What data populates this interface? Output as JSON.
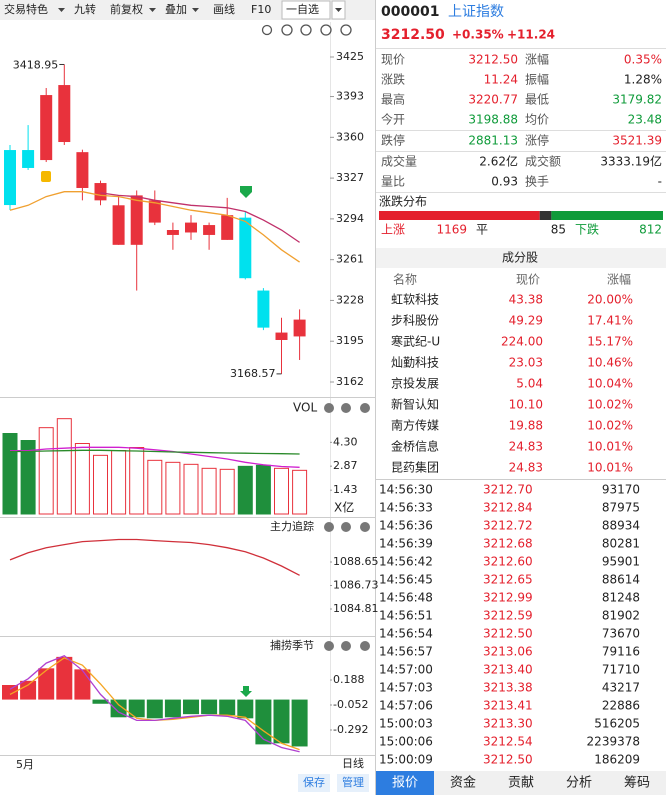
{
  "toolbar": {
    "items": [
      "交易特色",
      "九转",
      "前复权",
      "叠加",
      "画线",
      "F10",
      "一自选"
    ]
  },
  "kline": {
    "price_ticks": [
      3425,
      3393,
      3360,
      3327,
      3294,
      3261,
      3228,
      3195,
      3162
    ],
    "up_color": "#e8323c",
    "down_color": "#00e1ee",
    "candles": [
      {
        "open": 3349.7,
        "high": 3353.8,
        "low": 3301.2,
        "close": 3305.2
      },
      {
        "open": 3349.7,
        "high": 3369.9,
        "low": 3333.6,
        "close": 3335.2
      },
      {
        "open": 3341.6,
        "high": 3399.9,
        "low": 3340.0,
        "close": 3394.2
      },
      {
        "open": 3356.2,
        "high": 3418.95,
        "low": 3353.8,
        "close": 3402.3
      },
      {
        "open": 3319,
        "high": 3350,
        "low": 3309,
        "close": 3348
      },
      {
        "open": 3309,
        "high": 3325,
        "low": 3305,
        "close": 3323
      },
      {
        "open": 3273,
        "high": 3313,
        "low": 3273,
        "close": 3305
      },
      {
        "open": 3273,
        "high": 3317,
        "low": 3236,
        "close": 3313
      },
      {
        "open": 3291,
        "high": 3317,
        "low": 3289,
        "close": 3309
      },
      {
        "open": 3281,
        "high": 3291,
        "low": 3269,
        "close": 3285
      },
      {
        "open": 3283,
        "high": 3297,
        "low": 3277,
        "close": 3291
      },
      {
        "open": 3281,
        "high": 3291,
        "low": 3269,
        "close": 3289
      },
      {
        "open": 3277,
        "high": 3311,
        "low": 3277,
        "close": 3297
      },
      {
        "open": 3295,
        "high": 3300,
        "low": 3245,
        "close": 3246
      },
      {
        "open": 3236,
        "high": 3238,
        "low": 3204,
        "close": 3206
      },
      {
        "open": 3196,
        "high": 3214,
        "low": 3168.57,
        "close": 3202
      },
      {
        "open": 3198.88,
        "high": 3220.77,
        "low": 3179.82,
        "close": 3212.5
      }
    ],
    "ma": [
      {
        "color": "#f0a030",
        "values": [
          3301,
          3305,
          3312,
          3316,
          3316,
          3313,
          3312,
          3309,
          3307,
          3304,
          3301,
          3299,
          3297,
          3292,
          3281,
          3269,
          3259
        ]
      },
      {
        "color": "#c0306a",
        "values": [
          null,
          null,
          null,
          null,
          null,
          3315,
          3313,
          3312,
          3309,
          3307,
          3305,
          3304,
          3303,
          3300,
          3293,
          3285,
          3275
        ]
      }
    ],
    "date_label": "5月",
    "period": "日线"
  },
  "volume": {
    "title": "VOL",
    "unit": "X亿",
    "ylim": [
      0,
      6
    ],
    "ticks": [
      {
        "value": 4.3,
        "label": "4.30"
      },
      2.87,
      1.43
    ],
    "green": "#1f8f3c",
    "values": [
      4.83,
      4.41,
      5.18,
      5.72,
      4.23,
      3.52,
      3.81,
      3.99,
      3.22,
      3.1,
      2.98,
      2.74,
      2.68,
      2.86,
      2.92,
      2.74,
      2.62
    ],
    "ma": [
      {
        "color": "#d020d0",
        "values": [
          3.8,
          3.8,
          3.9,
          3.95,
          4.0,
          4.0,
          4.0,
          3.95,
          3.85,
          3.75,
          3.6,
          3.45,
          3.3,
          3.1,
          2.95,
          2.85,
          2.8
        ]
      },
      {
        "color": "#2a8a2a",
        "values": [
          3.75,
          3.75,
          3.78,
          3.8,
          3.82,
          3.82,
          3.8,
          3.78,
          3.75,
          3.72,
          3.7,
          3.68,
          3.66,
          3.65,
          3.63,
          3.62,
          3.6
        ]
      }
    ]
  },
  "mainforce": {
    "title": "主力追踪",
    "ticks": [
      1088.65,
      1086.73,
      1084.81
    ],
    "color": "#d0303a",
    "values": [
      1088.82,
      1089.4,
      1089.82,
      1090.07,
      1090.32,
      1090.4,
      1090.49,
      1090.49,
      1090.4,
      1090.32,
      1090.24,
      1090.07,
      1089.82,
      1089.48,
      1088.98,
      1088.32,
      1087.56
    ]
  },
  "season": {
    "title": "捕捞季节",
    "ticks": [
      0.188,
      -0.052,
      -0.292
    ],
    "values": [
      0.14,
      0.18,
      0.3,
      0.41,
      0.29,
      -0.04,
      -0.17,
      -0.17,
      -0.18,
      -0.17,
      -0.14,
      -0.14,
      -0.15,
      -0.18,
      -0.43,
      -0.42,
      -0.45
    ],
    "lines": [
      {
        "color": "#f5a623",
        "values": [
          0.05,
          0.14,
          0.28,
          0.4,
          0.33,
          0.15,
          -0.05,
          -0.18,
          -0.2,
          -0.19,
          -0.17,
          -0.15,
          -0.15,
          -0.17,
          -0.3,
          -0.42,
          -0.48
        ]
      },
      {
        "color": "#b040d0",
        "values": [
          0.1,
          0.2,
          0.35,
          0.42,
          0.28,
          0.05,
          -0.12,
          -0.2,
          -0.2,
          -0.18,
          -0.16,
          -0.15,
          -0.16,
          -0.2,
          -0.38,
          -0.46,
          -0.5
        ]
      }
    ]
  },
  "buttons": [
    "保存",
    "管理"
  ],
  "quote": {
    "code": "000001",
    "name": "上证指数",
    "price": "3212.50",
    "pct": "+0.35%",
    "change": "+11.24",
    "rows": [
      [
        {
          "label": "现价",
          "value": "3212.50",
          "color": "#e4202d"
        },
        {
          "label": "涨幅",
          "value": "0.35%",
          "color": "#e4202d"
        }
      ],
      [
        {
          "label": "涨跌",
          "value": "11.24",
          "color": "#e4202d"
        },
        {
          "label": "振幅",
          "value": "1.28%",
          "color": "#222222"
        }
      ],
      [
        {
          "label": "最高",
          "value": "3220.77",
          "color": "#e4202d"
        },
        {
          "label": "最低",
          "value": "3179.82",
          "color": "#0f9b3a"
        }
      ],
      [
        {
          "label": "今开",
          "value": "3198.88",
          "color": "#0f9b3a"
        },
        {
          "label": "均价",
          "value": "23.48",
          "color": "#0f9b3a"
        }
      ],
      [
        {
          "label": "跌停",
          "value": "2881.13",
          "color": "#0f9b3a"
        },
        {
          "label": "涨停",
          "value": "3521.39",
          "color": "#e4202d"
        }
      ],
      [
        {
          "label": "成交量",
          "value": "2.62亿",
          "color": "#222222"
        },
        {
          "label": "成交额",
          "value": "3333.19亿",
          "color": "#222222"
        }
      ],
      [
        {
          "label": "量比",
          "value": "0.93",
          "color": "#222222"
        },
        {
          "label": "换手",
          "value": "-",
          "color": "#222222"
        }
      ]
    ]
  },
  "distribution": {
    "title": "涨跌分布",
    "up_label": "上涨",
    "up": 1169,
    "flat_label": "平",
    "flat": 85,
    "down_label": "下跌",
    "down": 812
  },
  "components": {
    "title": "成分股",
    "headers": [
      "名称",
      "现价",
      "涨幅"
    ],
    "rows": [
      [
        "虹软科技",
        "43.38",
        "20.00%"
      ],
      [
        "步科股份",
        "49.29",
        "17.41%"
      ],
      [
        "寒武纪-U",
        "224.00",
        "15.17%"
      ],
      [
        "灿勤科技",
        "23.03",
        "10.46%"
      ],
      [
        "京投发展",
        "5.04",
        "10.04%"
      ],
      [
        "新智认知",
        "10.10",
        "10.02%"
      ],
      [
        "南方传媒",
        "19.88",
        "10.02%"
      ],
      [
        "金桥信息",
        "24.83",
        "10.01%"
      ],
      [
        "昆药集团",
        "24.83",
        "10.01%"
      ]
    ]
  },
  "ticks": {
    "rows": [
      [
        "14:56:30",
        "3212.70",
        "93170"
      ],
      [
        "14:56:33",
        "3212.84",
        "87975"
      ],
      [
        "14:56:36",
        "3212.72",
        "88934"
      ],
      [
        "14:56:39",
        "3212.68",
        "80281"
      ],
      [
        "14:56:42",
        "3212.60",
        "95901"
      ],
      [
        "14:56:45",
        "3212.65",
        "88614"
      ],
      [
        "14:56:48",
        "3212.99",
        "81248"
      ],
      [
        "14:56:51",
        "3212.59",
        "81902"
      ],
      [
        "14:56:54",
        "3212.50",
        "73670"
      ],
      [
        "14:56:57",
        "3213.06",
        "79116"
      ],
      [
        "14:57:00",
        "3213.40",
        "71710"
      ],
      [
        "14:57:03",
        "3213.38",
        "43217"
      ],
      [
        "14:57:06",
        "3213.41",
        "22886"
      ],
      [
        "15:00:03",
        "3213.30",
        "516205"
      ],
      [
        "15:00:06",
        "3212.54",
        "2239378"
      ],
      [
        "15:00:09",
        "3212.50",
        "186209"
      ]
    ]
  },
  "tabs": [
    "报价",
    "资金",
    "贡献",
    "分析",
    "筹码"
  ]
}
